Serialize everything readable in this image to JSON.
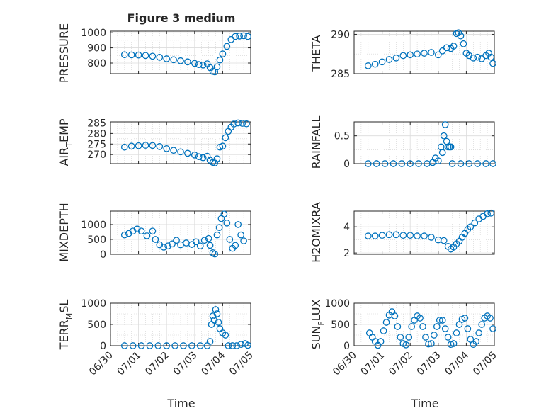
{
  "figure": {
    "title": "Figure 3 medium",
    "colors": {
      "marker": "#0072bd",
      "axes": "#262626",
      "grid": "#dcdcdc"
    },
    "x_tick_labels": [
      "06/30",
      "07/01",
      "07/02",
      "07/03",
      "07/04",
      "07/05"
    ],
    "x_axis_label": "Time"
  },
  "chart_data": [
    {
      "type": "scatter",
      "marker": "circle",
      "ylabel": "PRESSURE",
      "ylim": [
        730,
        1010
      ],
      "yticks": [
        800,
        900,
        1000
      ],
      "xlim": [
        0,
        5
      ],
      "xticks": [
        0,
        1,
        2,
        3,
        4,
        5
      ],
      "xticklabels": [
        "06/30",
        "07/01",
        "07/02",
        "07/03",
        "07/04",
        "07/05"
      ],
      "grid": true,
      "points": [
        [
          0.5,
          855
        ],
        [
          0.75,
          854
        ],
        [
          1.0,
          853
        ],
        [
          1.25,
          850
        ],
        [
          1.5,
          845
        ],
        [
          1.75,
          838
        ],
        [
          2.0,
          828
        ],
        [
          2.25,
          822
        ],
        [
          2.5,
          815
        ],
        [
          2.75,
          808
        ],
        [
          3.0,
          798
        ],
        [
          3.15,
          790
        ],
        [
          3.3,
          787
        ],
        [
          3.45,
          795
        ],
        [
          3.55,
          770
        ],
        [
          3.65,
          745
        ],
        [
          3.72,
          742
        ],
        [
          3.8,
          775
        ],
        [
          3.9,
          820
        ],
        [
          4.0,
          860
        ],
        [
          4.15,
          910
        ],
        [
          4.3,
          955
        ],
        [
          4.45,
          975
        ],
        [
          4.6,
          978
        ],
        [
          4.75,
          980
        ],
        [
          4.9,
          975
        ]
      ]
    },
    {
      "type": "scatter",
      "marker": "circle",
      "ylabel": "THETA",
      "ylim": [
        285,
        290.4
      ],
      "yticks": [
        285,
        290
      ],
      "xlim": [
        0,
        5
      ],
      "xticks": [
        0,
        1,
        2,
        3,
        4,
        5
      ],
      "xticklabels": [
        "06/30",
        "07/01",
        "07/02",
        "07/03",
        "07/04",
        "07/05"
      ],
      "grid": true,
      "points": [
        [
          0.5,
          286.0
        ],
        [
          0.75,
          286.2
        ],
        [
          1.0,
          286.5
        ],
        [
          1.25,
          286.8
        ],
        [
          1.5,
          287.0
        ],
        [
          1.75,
          287.3
        ],
        [
          2.0,
          287.4
        ],
        [
          2.25,
          287.5
        ],
        [
          2.5,
          287.6
        ],
        [
          2.75,
          287.7
        ],
        [
          3.0,
          287.4
        ],
        [
          3.15,
          287.9
        ],
        [
          3.3,
          288.3
        ],
        [
          3.45,
          288.2
        ],
        [
          3.55,
          288.5
        ],
        [
          3.65,
          290.1
        ],
        [
          3.72,
          290.2
        ],
        [
          3.8,
          289.8
        ],
        [
          3.9,
          288.8
        ],
        [
          4.0,
          287.6
        ],
        [
          4.1,
          287.3
        ],
        [
          4.25,
          287.0
        ],
        [
          4.4,
          287.1
        ],
        [
          4.55,
          286.9
        ],
        [
          4.7,
          287.3
        ],
        [
          4.8,
          287.6
        ],
        [
          4.88,
          287.1
        ],
        [
          4.95,
          286.3
        ]
      ]
    },
    {
      "type": "scatter",
      "marker": "circle",
      "ylabel": "AIR_TEMP",
      "ylim": [
        265.7,
        285.5
      ],
      "yticks": [
        270,
        275,
        280,
        285
      ],
      "xlim": [
        0,
        5
      ],
      "xticks": [
        0,
        1,
        2,
        3,
        4,
        5
      ],
      "xticklabels": [
        "06/30",
        "07/01",
        "07/02",
        "07/03",
        "07/04",
        "07/05"
      ],
      "grid": true,
      "points": [
        [
          0.5,
          273.5
        ],
        [
          0.75,
          274.0
        ],
        [
          1.0,
          274.2
        ],
        [
          1.25,
          274.4
        ],
        [
          1.5,
          274.3
        ],
        [
          1.75,
          273.8
        ],
        [
          2.0,
          272.8
        ],
        [
          2.25,
          272.0
        ],
        [
          2.5,
          271.3
        ],
        [
          2.75,
          270.6
        ],
        [
          3.0,
          269.8
        ],
        [
          3.15,
          269.0
        ],
        [
          3.3,
          268.5
        ],
        [
          3.45,
          269.2
        ],
        [
          3.55,
          267.3
        ],
        [
          3.65,
          266.3
        ],
        [
          3.72,
          266.0
        ],
        [
          3.8,
          268.0
        ],
        [
          3.9,
          273.5
        ],
        [
          4.0,
          274.0
        ],
        [
          4.1,
          278.0
        ],
        [
          4.2,
          281.0
        ],
        [
          4.3,
          283.0
        ],
        [
          4.4,
          284.5
        ],
        [
          4.55,
          285.0
        ],
        [
          4.7,
          284.8
        ],
        [
          4.85,
          284.6
        ]
      ]
    },
    {
      "type": "scatter",
      "marker": "circle",
      "ylabel": "RAINFALL",
      "ylim": [
        0,
        0.75
      ],
      "yticks": [
        0,
        0.5
      ],
      "xlim": [
        0,
        5
      ],
      "xticks": [
        0,
        1,
        2,
        3,
        4,
        5
      ],
      "xticklabels": [
        "06/30",
        "07/01",
        "07/02",
        "07/03",
        "07/04",
        "07/05"
      ],
      "grid": true,
      "points": [
        [
          0.5,
          0
        ],
        [
          0.8,
          0
        ],
        [
          1.1,
          0
        ],
        [
          1.4,
          0
        ],
        [
          1.7,
          0
        ],
        [
          2.0,
          0
        ],
        [
          2.3,
          0
        ],
        [
          2.6,
          0
        ],
        [
          2.8,
          0.02
        ],
        [
          2.9,
          0.1
        ],
        [
          3.0,
          0.05
        ],
        [
          3.1,
          0.3
        ],
        [
          3.15,
          0.2
        ],
        [
          3.2,
          0.5
        ],
        [
          3.25,
          0.7
        ],
        [
          3.3,
          0.4
        ],
        [
          3.35,
          0.3
        ],
        [
          3.4,
          0.3
        ],
        [
          3.45,
          0.3
        ],
        [
          3.5,
          0
        ],
        [
          3.8,
          0
        ],
        [
          4.1,
          0
        ],
        [
          4.4,
          0
        ],
        [
          4.7,
          0
        ],
        [
          4.95,
          0
        ]
      ]
    },
    {
      "type": "scatter",
      "marker": "circle",
      "ylabel": "MIXDEPTH",
      "ylim": [
        0,
        1450
      ],
      "yticks": [
        0,
        500,
        1000
      ],
      "xlim": [
        0,
        5
      ],
      "xticks": [
        0,
        1,
        2,
        3,
        4,
        5
      ],
      "xticklabels": [
        "06/30",
        "07/01",
        "07/02",
        "07/03",
        "07/04",
        "07/05"
      ],
      "grid": true,
      "points": [
        [
          0.5,
          650
        ],
        [
          0.65,
          700
        ],
        [
          0.8,
          780
        ],
        [
          0.95,
          850
        ],
        [
          1.1,
          780
        ],
        [
          1.3,
          620
        ],
        [
          1.5,
          780
        ],
        [
          1.6,
          500
        ],
        [
          1.75,
          320
        ],
        [
          1.9,
          240
        ],
        [
          2.05,
          280
        ],
        [
          2.2,
          350
        ],
        [
          2.35,
          470
        ],
        [
          2.5,
          320
        ],
        [
          2.7,
          380
        ],
        [
          2.9,
          330
        ],
        [
          3.05,
          420
        ],
        [
          3.2,
          280
        ],
        [
          3.35,
          470
        ],
        [
          3.5,
          530
        ],
        [
          3.55,
          300
        ],
        [
          3.65,
          50
        ],
        [
          3.72,
          10
        ],
        [
          3.8,
          650
        ],
        [
          3.88,
          900
        ],
        [
          3.95,
          1200
        ],
        [
          4.05,
          1350
        ],
        [
          4.15,
          1050
        ],
        [
          4.25,
          500
        ],
        [
          4.35,
          200
        ],
        [
          4.45,
          300
        ],
        [
          4.55,
          1000
        ],
        [
          4.65,
          650
        ],
        [
          4.75,
          450
        ]
      ]
    },
    {
      "type": "scatter",
      "marker": "circle",
      "ylabel": "H2OMIXRA",
      "ylim": [
        1.9,
        5.2
      ],
      "yticks": [
        2,
        4
      ],
      "xlim": [
        0,
        5
      ],
      "xticks": [
        0,
        1,
        2,
        3,
        4,
        5
      ],
      "xticklabels": [
        "06/30",
        "07/01",
        "07/02",
        "07/03",
        "07/04",
        "07/05"
      ],
      "grid": true,
      "points": [
        [
          0.5,
          3.3
        ],
        [
          0.75,
          3.3
        ],
        [
          1.0,
          3.35
        ],
        [
          1.25,
          3.4
        ],
        [
          1.5,
          3.4
        ],
        [
          1.75,
          3.35
        ],
        [
          2.0,
          3.35
        ],
        [
          2.25,
          3.3
        ],
        [
          2.5,
          3.3
        ],
        [
          2.75,
          3.2
        ],
        [
          3.0,
          3.0
        ],
        [
          3.2,
          2.95
        ],
        [
          3.35,
          2.5
        ],
        [
          3.45,
          2.3
        ],
        [
          3.55,
          2.45
        ],
        [
          3.65,
          2.7
        ],
        [
          3.75,
          2.9
        ],
        [
          3.85,
          3.2
        ],
        [
          3.95,
          3.5
        ],
        [
          4.05,
          3.8
        ],
        [
          4.15,
          4.0
        ],
        [
          4.3,
          4.3
        ],
        [
          4.45,
          4.6
        ],
        [
          4.6,
          4.8
        ],
        [
          4.75,
          5.0
        ],
        [
          4.88,
          5.05
        ]
      ]
    },
    {
      "type": "scatter",
      "marker": "circle",
      "ylabel": "TERR_MSL",
      "ylim": [
        0,
        1000
      ],
      "yticks": [
        0,
        500,
        1000
      ],
      "xlim": [
        0,
        5
      ],
      "xticks": [
        0,
        1,
        2,
        3,
        4,
        5
      ],
      "xticklabels": [
        "06/30",
        "07/01",
        "07/02",
        "07/03",
        "07/04",
        "07/05"
      ],
      "grid": true,
      "points": [
        [
          0.5,
          0
        ],
        [
          0.8,
          0
        ],
        [
          1.1,
          0
        ],
        [
          1.4,
          0
        ],
        [
          1.7,
          0
        ],
        [
          2.0,
          0
        ],
        [
          2.3,
          0
        ],
        [
          2.6,
          0
        ],
        [
          2.9,
          0
        ],
        [
          3.2,
          0
        ],
        [
          3.45,
          0
        ],
        [
          3.55,
          100
        ],
        [
          3.6,
          500
        ],
        [
          3.65,
          700
        ],
        [
          3.7,
          600
        ],
        [
          3.75,
          850
        ],
        [
          3.8,
          750
        ],
        [
          3.85,
          550
        ],
        [
          3.9,
          400
        ],
        [
          4.0,
          300
        ],
        [
          4.1,
          250
        ],
        [
          4.2,
          0
        ],
        [
          4.35,
          0
        ],
        [
          4.5,
          0
        ],
        [
          4.65,
          30
        ],
        [
          4.8,
          50
        ],
        [
          4.9,
          10
        ]
      ]
    },
    {
      "type": "scatter",
      "marker": "circle",
      "ylabel": "SUN_FLUX",
      "ylim": [
        0,
        1000
      ],
      "yticks": [
        0,
        500,
        1000
      ],
      "xlim": [
        0,
        5
      ],
      "xticks": [
        0,
        1,
        2,
        3,
        4,
        5
      ],
      "xticklabels": [
        "06/30",
        "07/01",
        "07/02",
        "07/03",
        "07/04",
        "07/05"
      ],
      "grid": true,
      "points": [
        [
          0.55,
          300
        ],
        [
          0.65,
          200
        ],
        [
          0.75,
          100
        ],
        [
          0.85,
          10
        ],
        [
          0.95,
          100
        ],
        [
          1.05,
          350
        ],
        [
          1.15,
          550
        ],
        [
          1.25,
          720
        ],
        [
          1.35,
          800
        ],
        [
          1.45,
          700
        ],
        [
          1.55,
          450
        ],
        [
          1.65,
          200
        ],
        [
          1.75,
          50
        ],
        [
          1.85,
          20
        ],
        [
          1.95,
          200
        ],
        [
          2.05,
          450
        ],
        [
          2.15,
          600
        ],
        [
          2.25,
          700
        ],
        [
          2.35,
          650
        ],
        [
          2.45,
          450
        ],
        [
          2.55,
          200
        ],
        [
          2.65,
          40
        ],
        [
          2.75,
          50
        ],
        [
          2.85,
          250
        ],
        [
          2.95,
          450
        ],
        [
          3.05,
          600
        ],
        [
          3.15,
          600
        ],
        [
          3.25,
          400
        ],
        [
          3.35,
          200
        ],
        [
          3.45,
          30
        ],
        [
          3.55,
          50
        ],
        [
          3.65,
          300
        ],
        [
          3.75,
          500
        ],
        [
          3.85,
          620
        ],
        [
          3.95,
          650
        ],
        [
          4.05,
          400
        ],
        [
          4.15,
          150
        ],
        [
          4.25,
          30
        ],
        [
          4.35,
          100
        ],
        [
          4.45,
          300
        ],
        [
          4.55,
          500
        ],
        [
          4.65,
          650
        ],
        [
          4.75,
          700
        ],
        [
          4.85,
          650
        ],
        [
          4.95,
          400
        ]
      ]
    }
  ]
}
